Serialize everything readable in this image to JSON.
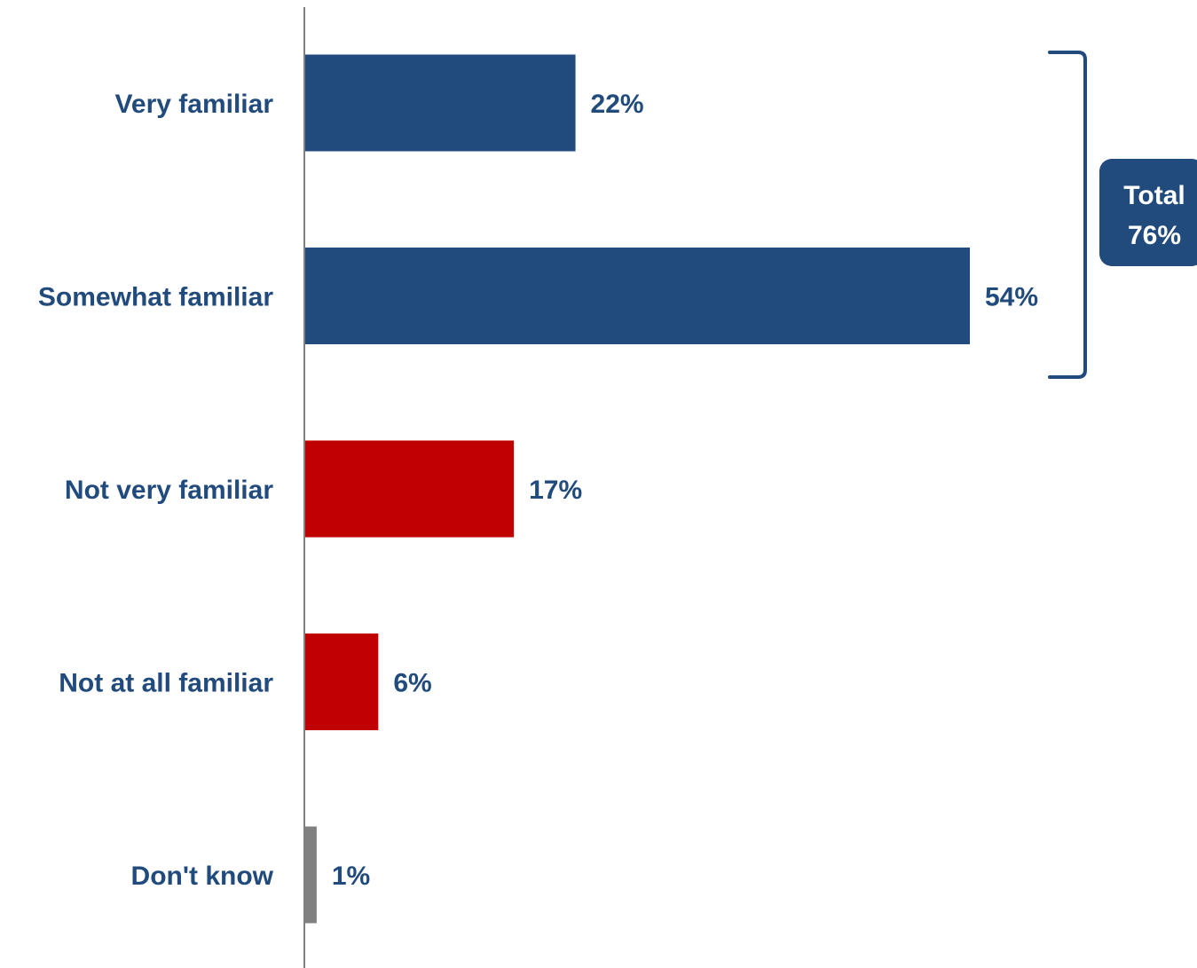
{
  "chart_data": {
    "type": "bar",
    "orientation": "horizontal",
    "categories": [
      "Very familiar",
      "Somewhat familiar",
      "Not very familiar",
      "Not at all familiar",
      "Don't know"
    ],
    "values": [
      22,
      54,
      17,
      6,
      1
    ],
    "value_labels": [
      "22%",
      "54%",
      "17%",
      "6%",
      "1%"
    ],
    "bar_colors": [
      "#214a7d",
      "#214a7d",
      "#c00000",
      "#c00000",
      "#808080"
    ],
    "xlim": [
      0,
      54
    ],
    "grid": false,
    "legend": "none",
    "annotation": {
      "brackets_categories": [
        "Very familiar",
        "Somewhat familiar"
      ],
      "line1": "Total",
      "line2": "76%",
      "color": "#214a7d"
    }
  }
}
